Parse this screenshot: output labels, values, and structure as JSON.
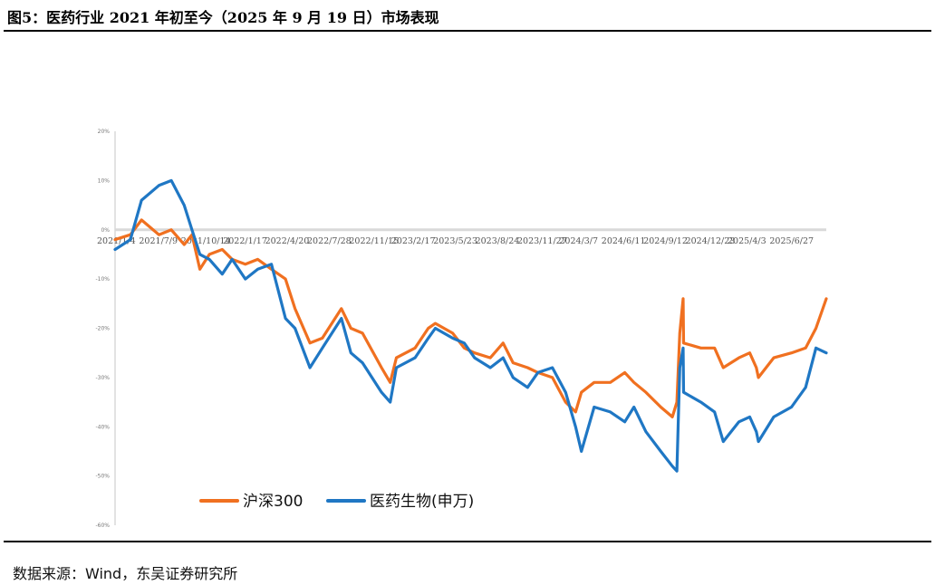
{
  "figure_title": "图5：医药行业 2021 年初至今（2025 年 9 月 19 日）市场表现",
  "source_note": "数据来源：Wind，东吴证券研究所",
  "colors": {
    "series_1": "#F07020",
    "series_2": "#1F77C4",
    "zero_band": "#D9D9D9"
  },
  "chart_data": {
    "type": "line",
    "title": "",
    "xlabel": "",
    "ylabel": "",
    "ylim": [
      -60,
      20
    ],
    "y_ticks": [
      20,
      10,
      0,
      -10,
      -20,
      -30,
      -40,
      -50,
      -60
    ],
    "y_tick_labels": [
      "20%",
      "10%",
      "0%",
      "-10%",
      "-20%",
      "-30%",
      "-40%",
      "-50%",
      "-60%"
    ],
    "x_tick_labels": [
      "2021/1/4",
      "2021/7/9",
      "2021/10/14",
      "2022/1/17",
      "2022/4/20",
      "2022/7/28",
      "2022/11/15",
      "2023/2/17",
      "2023/5/23",
      "2023/8/24",
      "2023/11/27",
      "2024/3/7",
      "2024/6/11",
      "2024/9/12",
      "2024/12/23",
      "2025/4/3",
      "2025/6/27"
    ],
    "legend_position": "bottom",
    "grid": false,
    "series": [
      {
        "name": "沪深300",
        "x": [
          "2021/1/4",
          "2021/2/10",
          "2021/3/9",
          "2021/4/20",
          "2021/5/20",
          "2021/6/20",
          "2021/7/9",
          "2021/7/28",
          "2021/8/20",
          "2021/9/20",
          "2021/10/14",
          "2021/11/15",
          "2021/12/15",
          "2022/1/17",
          "2022/2/20",
          "2022/3/15",
          "2022/4/20",
          "2022/5/20",
          "2022/7/5",
          "2022/7/28",
          "2022/8/25",
          "2022/10/10",
          "2022/10/31",
          "2022/11/15",
          "2022/12/30",
          "2023/1/31",
          "2023/2/17",
          "2023/3/31",
          "2023/4/28",
          "2023/5/23",
          "2023/6/30",
          "2023/7/31",
          "2023/8/24",
          "2023/9/28",
          "2023/10/23",
          "2023/11/27",
          "2023/12/29",
          "2024/1/22",
          "2024/2/5",
          "2024/3/7",
          "2024/4/15",
          "2024/5/20",
          "2024/6/11",
          "2024/7/10",
          "2024/8/15",
          "2024/9/12",
          "2024/9/23",
          "2024/9/30",
          "2024/10/8",
          "2024/10/9",
          "2024/11/20",
          "2024/12/23",
          "2025/1/13",
          "2025/2/20",
          "2025/3/18",
          "2025/4/3",
          "2025/4/8",
          "2025/5/15",
          "2025/6/27",
          "2025/7/31",
          "2025/8/25",
          "2025/9/19"
        ],
        "values": [
          -2,
          -1,
          2,
          -1,
          0,
          -3,
          -1,
          -8,
          -5,
          -4,
          -6,
          -7,
          -6,
          -8,
          -10,
          -16,
          -23,
          -22,
          -16,
          -20,
          -21,
          -28,
          -31,
          -26,
          -24,
          -20,
          -19,
          -21,
          -24,
          -25,
          -26,
          -23,
          -27,
          -28,
          -29,
          -30,
          -35,
          -37,
          -33,
          -31,
          -31,
          -29,
          -31,
          -33,
          -36,
          -38,
          -35,
          -21,
          -14,
          -23,
          -24,
          -24,
          -28,
          -26,
          -25,
          -28,
          -30,
          -26,
          -25,
          -24,
          -20,
          -14
        ]
      },
      {
        "name": "医药生物(申万)",
        "x": [
          "2021/1/4",
          "2021/2/10",
          "2021/3/9",
          "2021/4/20",
          "2021/5/20",
          "2021/6/20",
          "2021/7/9",
          "2021/7/28",
          "2021/8/20",
          "2021/9/20",
          "2021/10/14",
          "2021/11/15",
          "2021/12/15",
          "2022/1/17",
          "2022/2/20",
          "2022/3/15",
          "2022/4/20",
          "2022/5/20",
          "2022/7/5",
          "2022/7/28",
          "2022/8/25",
          "2022/10/10",
          "2022/10/31",
          "2022/11/15",
          "2022/12/30",
          "2023/1/31",
          "2023/2/17",
          "2023/3/31",
          "2023/4/28",
          "2023/5/23",
          "2023/6/30",
          "2023/7/31",
          "2023/8/24",
          "2023/9/28",
          "2023/10/23",
          "2023/11/27",
          "2023/12/29",
          "2024/1/22",
          "2024/2/5",
          "2024/3/7",
          "2024/4/15",
          "2024/5/20",
          "2024/6/11",
          "2024/7/10",
          "2024/8/15",
          "2024/9/12",
          "2024/9/23",
          "2024/9/30",
          "2024/10/8",
          "2024/10/9",
          "2024/11/20",
          "2024/12/23",
          "2025/1/13",
          "2025/2/20",
          "2025/3/18",
          "2025/4/3",
          "2025/4/8",
          "2025/5/15",
          "2025/6/27",
          "2025/7/31",
          "2025/8/25",
          "2025/9/19"
        ],
        "values": [
          -4,
          -2,
          6,
          9,
          10,
          5,
          0,
          -5,
          -6,
          -9,
          -6,
          -10,
          -8,
          -7,
          -18,
          -20,
          -28,
          -24,
          -18,
          -25,
          -27,
          -33,
          -35,
          -28,
          -26,
          -22,
          -20,
          -22,
          -23,
          -26,
          -28,
          -26,
          -30,
          -32,
          -29,
          -28,
          -33,
          -40,
          -45,
          -36,
          -37,
          -39,
          -36,
          -41,
          -45,
          -48,
          -49,
          -28,
          -24,
          -33,
          -35,
          -37,
          -43,
          -39,
          -38,
          -41,
          -43,
          -38,
          -36,
          -32,
          -24,
          -25
        ]
      }
    ]
  }
}
